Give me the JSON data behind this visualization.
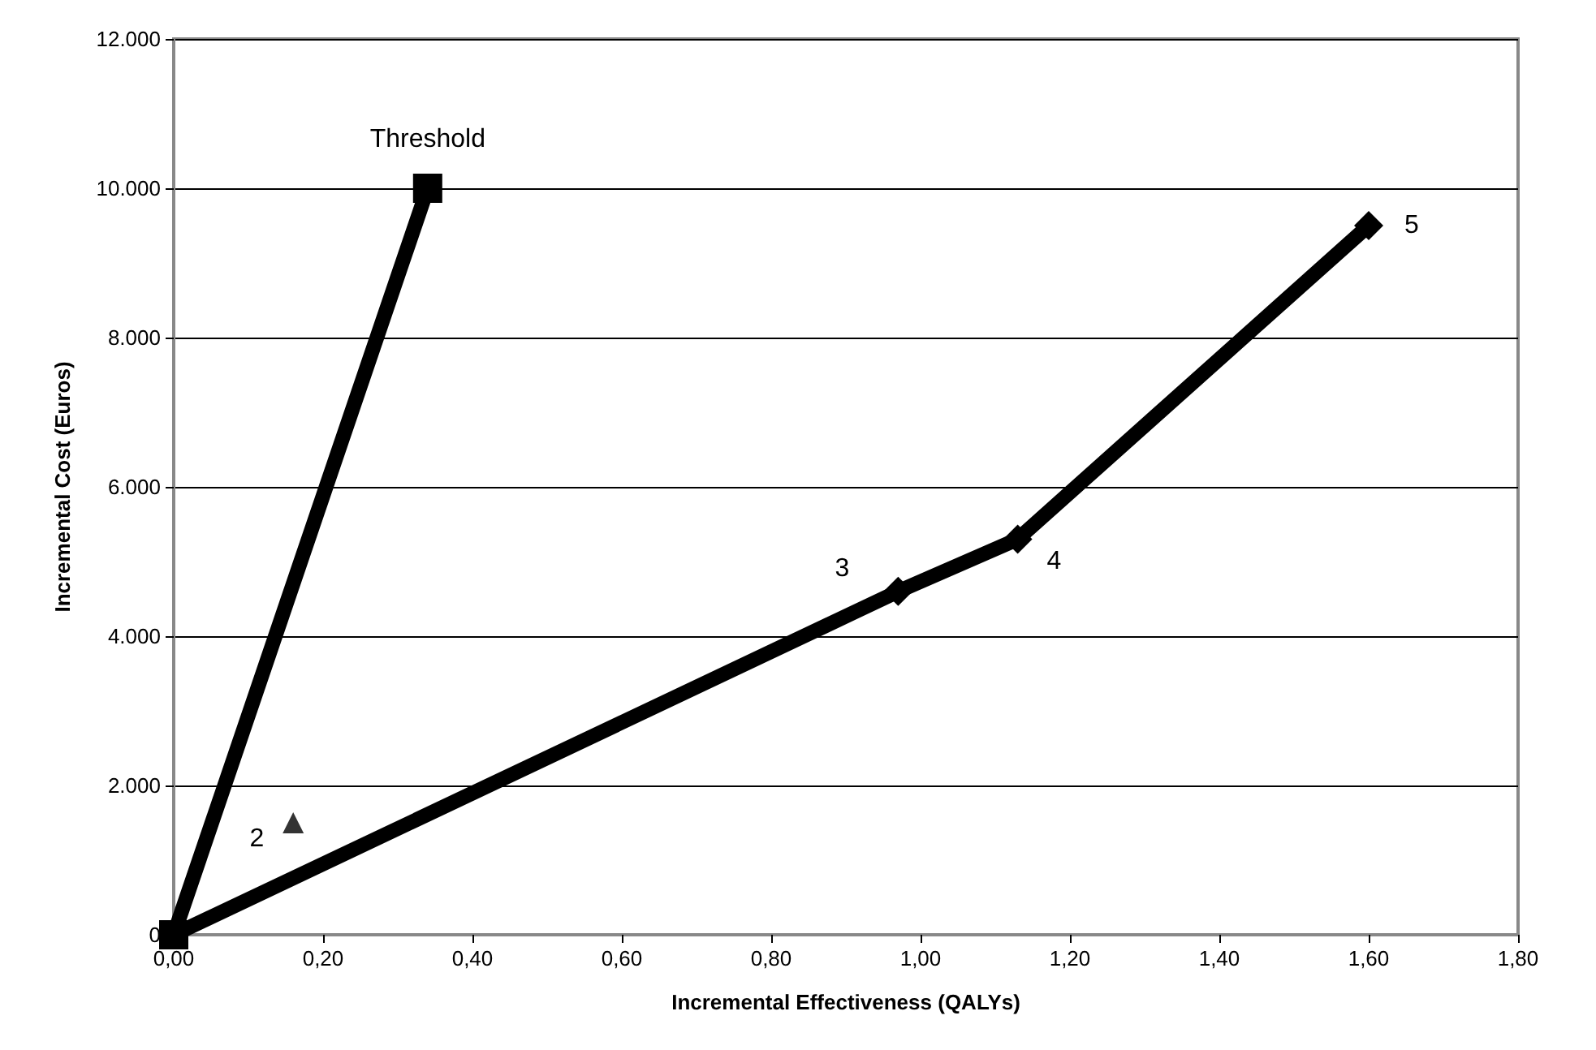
{
  "chart_data": {
    "type": "line",
    "xlabel": "Incremental Effectiveness (QALYs)",
    "ylabel": "Incremental Cost (Euros)",
    "series": [
      {
        "color": "#000000",
        "marker": "square",
        "x": [
          0,
          0.34
        ],
        "values": [
          0,
          10000
        ]
      },
      {
        "color": "#000000",
        "marker": "diamond",
        "x": [
          0,
          0.97,
          1.13,
          1.6
        ],
        "values": [
          0,
          4600,
          5300,
          9500
        ]
      },
      {
        "type": "scatter",
        "color": "#000000",
        "marker": "triangle",
        "x": [
          0.16
        ],
        "values": [
          1500
        ]
      }
    ],
    "annotations": [
      {
        "text": "Threshold",
        "x": 0.34,
        "y": 10000
      },
      {
        "text": "2",
        "x": 0.16,
        "y": 1500
      },
      {
        "text": "3",
        "x": 0.97,
        "y": 4600
      },
      {
        "text": "4",
        "x": 1.13,
        "y": 5300
      },
      {
        "text": "5",
        "x": 1.6,
        "y": 9500
      }
    ],
    "xlim": [
      0,
      1.8
    ],
    "xticks": [
      {
        "value": 0,
        "label": "0,00"
      },
      {
        "value": 0.2,
        "label": "0,20"
      },
      {
        "value": 0.4,
        "label": "0,40"
      },
      {
        "value": 0.6,
        "label": "0,60"
      },
      {
        "value": 0.8,
        "label": "0,80"
      },
      {
        "value": 1.0,
        "label": "1,00"
      },
      {
        "value": 1.2,
        "label": "1,20"
      },
      {
        "value": 1.4,
        "label": "1,40"
      },
      {
        "value": 1.6,
        "label": "1,60"
      },
      {
        "value": 1.8,
        "label": "1,80"
      }
    ],
    "ylim": [
      0,
      12000
    ],
    "yticks": [
      0,
      {
        "value": 2000,
        "label": "2.000"
      },
      {
        "value": 4000,
        "label": "4.000"
      },
      {
        "value": 6000,
        "label": "6.000"
      },
      {
        "value": 8000,
        "label": "8.000"
      },
      {
        "value": 10000,
        "label": "10.000"
      },
      {
        "value": 12000,
        "label": "12.000"
      }
    ],
    "grid": "y"
  }
}
